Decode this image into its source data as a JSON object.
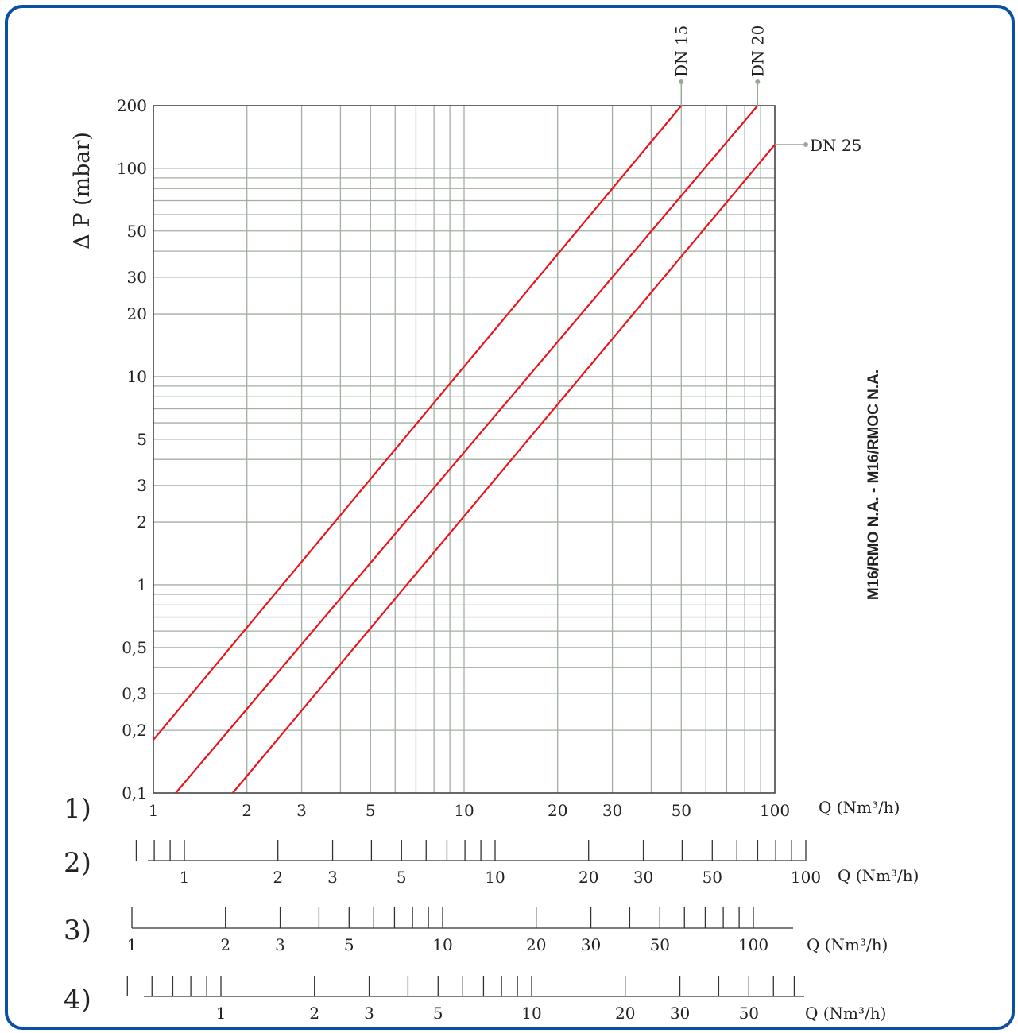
{
  "chart_data": {
    "type": "line",
    "ylabel": "Δ P (mbar)",
    "side_label": "M16/RMO N.A. - M16/RMOC N.A.",
    "x_scale": "log",
    "y_scale": "log",
    "xlim": [
      1,
      100
    ],
    "ylim": [
      0.1,
      200
    ],
    "grid": true,
    "y_tick_labels": [
      {
        "value": 200,
        "label": "200"
      },
      {
        "value": 100,
        "label": "100"
      },
      {
        "value": 50,
        "label": "50"
      },
      {
        "value": 30,
        "label": "30"
      },
      {
        "value": 20,
        "label": "20"
      },
      {
        "value": 10,
        "label": "10"
      },
      {
        "value": 5,
        "label": "5"
      },
      {
        "value": 3,
        "label": "3"
      },
      {
        "value": 2,
        "label": "2"
      },
      {
        "value": 1,
        "label": "1"
      },
      {
        "value": 0.5,
        "label": "0,5"
      },
      {
        "value": 0.3,
        "label": "0,3"
      },
      {
        "value": 0.2,
        "label": "0,2"
      },
      {
        "value": 0.1,
        "label": "0,1"
      }
    ],
    "series": [
      {
        "name": "DN 15",
        "color": "#e8141c",
        "x": [
          1,
          50
        ],
        "y": [
          0.18,
          200
        ]
      },
      {
        "name": "DN 20",
        "color": "#e8141c",
        "x": [
          1.18,
          88
        ],
        "y": [
          0.1,
          200
        ]
      },
      {
        "name": "DN 25",
        "color": "#e8141c",
        "x": [
          1.8,
          100
        ],
        "y": [
          0.1,
          130
        ]
      }
    ],
    "flow_scales": [
      {
        "label": "1)",
        "unit": "Q (Nm³/h)",
        "ticks": [
          1,
          2,
          3,
          4,
          5,
          6,
          7,
          8,
          9,
          10,
          20,
          30,
          40,
          50,
          60,
          70,
          80,
          90,
          100
        ],
        "tick_labels": [
          {
            "value": 1,
            "label": "1"
          },
          {
            "value": 2,
            "label": "2"
          },
          {
            "value": 3,
            "label": "3"
          },
          {
            "value": 5,
            "label": "5"
          },
          {
            "value": 10,
            "label": "10"
          },
          {
            "value": 20,
            "label": "20"
          },
          {
            "value": 30,
            "label": "30"
          },
          {
            "value": 50,
            "label": "50"
          },
          {
            "value": 100,
            "label": "100"
          }
        ]
      },
      {
        "label": "2)",
        "unit": "Q (Nm³/h)",
        "ticks": [
          0.7,
          0.8,
          0.9,
          1,
          2,
          3,
          4,
          5,
          6,
          7,
          8,
          9,
          10,
          20,
          30,
          40,
          50,
          60,
          70,
          80,
          90,
          100
        ],
        "tick_labels": [
          {
            "value": 1,
            "label": "1"
          },
          {
            "value": 2,
            "label": "2"
          },
          {
            "value": 3,
            "label": "3"
          },
          {
            "value": 5,
            "label": "5"
          },
          {
            "value": 10,
            "label": "10"
          },
          {
            "value": 20,
            "label": "20"
          },
          {
            "value": 30,
            "label": "30"
          },
          {
            "value": 50,
            "label": "50"
          },
          {
            "value": 100,
            "label": "100"
          }
        ]
      },
      {
        "label": "3)",
        "unit": "Q (Nm³/h)",
        "ticks": [
          1,
          2,
          3,
          4,
          5,
          6,
          7,
          8,
          9,
          10,
          20,
          30,
          40,
          50,
          60,
          70,
          80,
          90,
          100
        ],
        "tick_labels": [
          {
            "value": 1,
            "label": "1"
          },
          {
            "value": 2,
            "label": "2"
          },
          {
            "value": 3,
            "label": "3"
          },
          {
            "value": 5,
            "label": "5"
          },
          {
            "value": 10,
            "label": "10"
          },
          {
            "value": 20,
            "label": "20"
          },
          {
            "value": 30,
            "label": "30"
          },
          {
            "value": 50,
            "label": "50"
          },
          {
            "value": 100,
            "label": "100"
          }
        ]
      },
      {
        "label": "4)",
        "unit": "Q (Nm³/h)",
        "ticks": [
          0.5,
          0.6,
          0.7,
          0.8,
          0.9,
          1,
          2,
          3,
          4,
          5,
          6,
          7,
          8,
          9,
          10,
          20,
          30,
          40,
          50,
          60,
          70
        ],
        "tick_labels": [
          {
            "value": 1,
            "label": "1"
          },
          {
            "value": 2,
            "label": "2"
          },
          {
            "value": 3,
            "label": "3"
          },
          {
            "value": 5,
            "label": "5"
          },
          {
            "value": 10,
            "label": "10"
          },
          {
            "value": 20,
            "label": "20"
          },
          {
            "value": 30,
            "label": "30"
          },
          {
            "value": 50,
            "label": "50"
          }
        ]
      }
    ]
  }
}
